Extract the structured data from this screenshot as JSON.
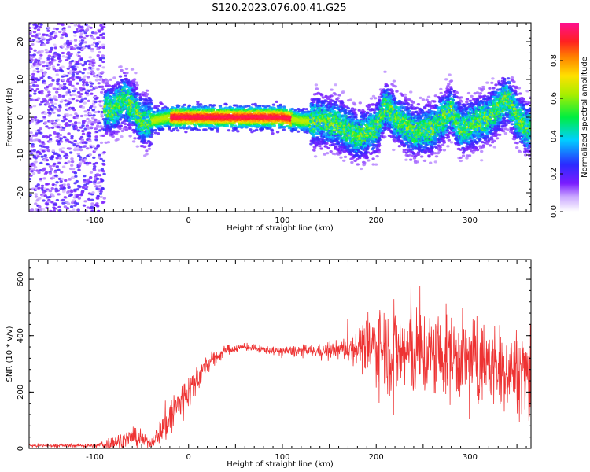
{
  "title": "S120.2023.076.00.41.G25",
  "chart_data": [
    {
      "type": "heatmap",
      "xlabel": "Height of straight line (km)",
      "ylabel": "Frequency (Hz)",
      "xlim": [
        -170,
        365
      ],
      "ylim": [
        -25,
        25
      ],
      "x_ticks": [
        -100,
        0,
        100,
        200,
        300
      ],
      "y_ticks": [
        -20,
        -10,
        0,
        10,
        20
      ],
      "grid": false,
      "colorbar": {
        "label": "Normalized spectral amplitude",
        "range": [
          0,
          1
        ],
        "ticks": [
          "0.0",
          "0.2",
          "0.4",
          "0.6",
          "0.8"
        ],
        "colormap": "rainbow (white-purple-blue-cyan-green-yellow-red-pink)"
      },
      "ridge": {
        "x": [
          -80,
          -70,
          -60,
          -50,
          -40,
          -20,
          0,
          20,
          40,
          60,
          80,
          100,
          120,
          140,
          160,
          180,
          200,
          210,
          220,
          240,
          260,
          280,
          290,
          300,
          320,
          340,
          350,
          360
        ],
        "y": [
          2,
          5,
          3,
          -1,
          -1,
          0,
          0,
          0,
          0,
          0,
          0,
          0,
          -1,
          -1,
          -2,
          -5,
          -3,
          3,
          0,
          -4,
          -3,
          2,
          -3,
          -2,
          0,
          5,
          0,
          -3
        ]
      }
    },
    {
      "type": "line",
      "xlabel": "Height of straight line (km)",
      "ylabel": "SNR (10 * v/v)",
      "xlim": [
        -170,
        365
      ],
      "ylim": [
        0,
        670
      ],
      "x_ticks": [
        -100,
        0,
        100,
        200,
        300
      ],
      "y_ticks": [
        0,
        200,
        400,
        600
      ],
      "grid": false,
      "series_color": "#ee3333",
      "envelope": {
        "x": [
          -170,
          -100,
          -80,
          -60,
          -40,
          -30,
          -20,
          0,
          20,
          40,
          60,
          80,
          100,
          120,
          140,
          160,
          180,
          200,
          220,
          240,
          260,
          280,
          300,
          320,
          340,
          365
        ],
        "mean": [
          10,
          10,
          20,
          40,
          20,
          60,
          110,
          200,
          300,
          350,
          360,
          350,
          345,
          345,
          345,
          350,
          360,
          360,
          340,
          340,
          330,
          330,
          310,
          300,
          280,
          280
        ],
        "noise": [
          5,
          6,
          25,
          30,
          15,
          40,
          80,
          60,
          30,
          15,
          12,
          12,
          15,
          20,
          20,
          30,
          60,
          130,
          150,
          150,
          140,
          140,
          130,
          130,
          130,
          130
        ]
      }
    }
  ]
}
